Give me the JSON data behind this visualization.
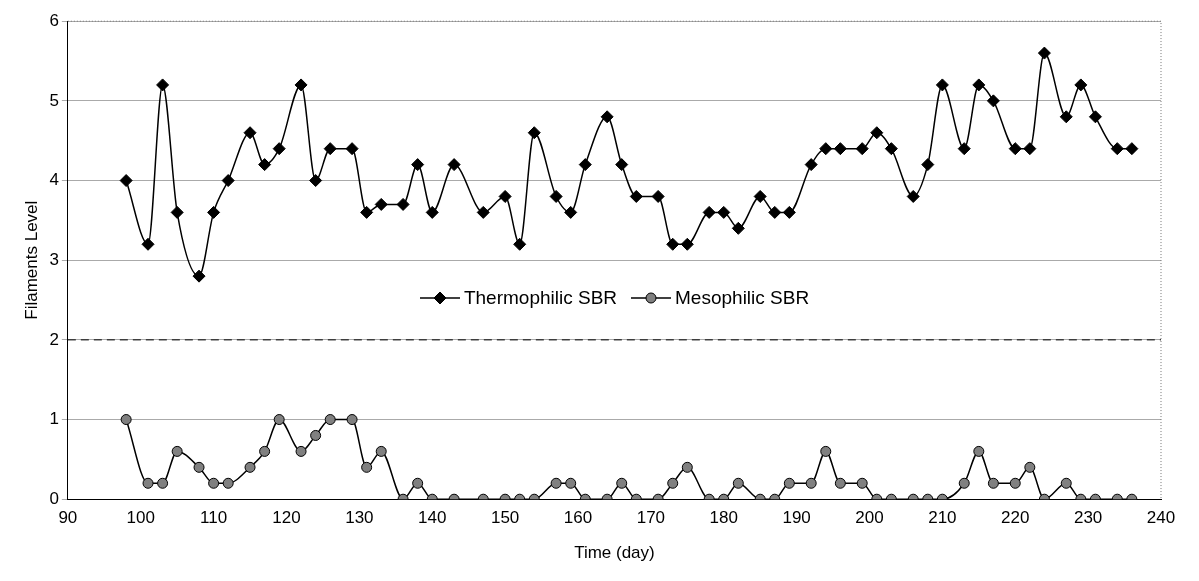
{
  "chart_data": {
    "type": "line",
    "xlabel": "Time (day)",
    "ylabel": "Filaments Level",
    "x": [
      98,
      101,
      103,
      105,
      108,
      110,
      112,
      115,
      117,
      119,
      122,
      124,
      126,
      129,
      131,
      133,
      136,
      138,
      140,
      143,
      147,
      150,
      152,
      154,
      157,
      159,
      161,
      164,
      166,
      168,
      171,
      173,
      175,
      178,
      180,
      182,
      185,
      187,
      189,
      192,
      194,
      196,
      199,
      201,
      203,
      206,
      208,
      210,
      213,
      215,
      217,
      220,
      222,
      224,
      227,
      229,
      231,
      234,
      236
    ],
    "series": [
      {
        "name": "Thermophilic SBR",
        "color": "#000000",
        "marker": "diamond",
        "values": [
          4.0,
          3.2,
          5.2,
          3.6,
          2.8,
          3.6,
          4.0,
          4.6,
          4.2,
          4.4,
          5.2,
          4.0,
          4.4,
          4.4,
          3.6,
          3.7,
          3.7,
          4.2,
          3.6,
          4.2,
          3.6,
          3.8,
          3.2,
          4.6,
          3.8,
          3.6,
          4.2,
          4.8,
          4.2,
          3.8,
          3.8,
          3.2,
          3.2,
          3.6,
          3.6,
          3.4,
          3.8,
          3.6,
          3.6,
          4.2,
          4.4,
          4.4,
          4.4,
          4.6,
          4.4,
          3.8,
          4.2,
          5.2,
          4.4,
          5.2,
          5.0,
          4.4,
          4.4,
          5.6,
          4.8,
          5.2,
          4.8,
          4.4,
          4.4
        ]
      },
      {
        "name": "Mesophilic SBR",
        "color": "#808080",
        "marker": "circle",
        "values": [
          1.0,
          0.2,
          0.2,
          0.6,
          0.4,
          0.2,
          0.2,
          0.4,
          0.6,
          1.0,
          0.6,
          0.8,
          1.0,
          1.0,
          0.4,
          0.6,
          0,
          0.2,
          0,
          0,
          0,
          0,
          0,
          0,
          0.2,
          0.2,
          0,
          0,
          0.2,
          0,
          0,
          0.2,
          0.4,
          0,
          0,
          0.2,
          0,
          0,
          0.2,
          0.2,
          0.6,
          0.2,
          0.2,
          0,
          0,
          0,
          0,
          0,
          0.2,
          0.6,
          0.2,
          0.2,
          0.4,
          0,
          0.2,
          0,
          0,
          0,
          0
        ]
      }
    ],
    "xlim": [
      90,
      240
    ],
    "xticks": [
      90,
      100,
      110,
      120,
      130,
      140,
      150,
      160,
      170,
      180,
      190,
      200,
      210,
      220,
      230,
      240
    ],
    "ylim": [
      0,
      6
    ],
    "yticks": [
      0,
      1,
      2,
      3,
      4,
      5,
      6
    ],
    "grid": "y",
    "legend": "center",
    "ref_lines": [
      {
        "axis": "y",
        "value": 2,
        "line_style": "dashed",
        "color": "#000000"
      }
    ]
  }
}
